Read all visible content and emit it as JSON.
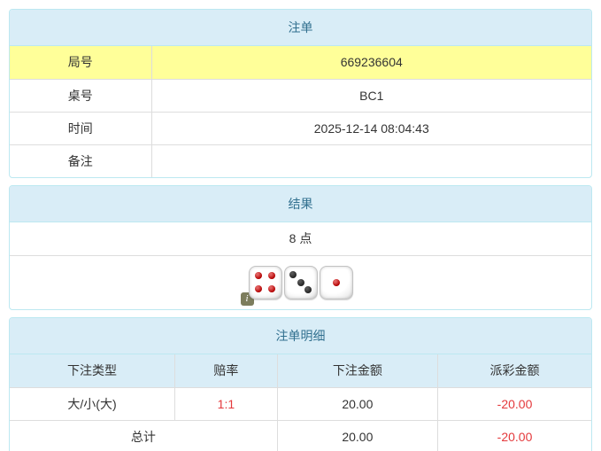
{
  "colors": {
    "panel_border": "#bce8f1",
    "heading_bg": "#d9edf7",
    "heading_text": "#31708f",
    "highlight_row_bg": "#ffff99",
    "table_inner_border": "#dddddd",
    "negative_text": "#e4393c",
    "body_text": "#333333"
  },
  "bet_panel": {
    "title": "注单",
    "rows": [
      {
        "label": "局号",
        "value": "669236604",
        "highlight": true
      },
      {
        "label": "桌号",
        "value": "BC1",
        "highlight": false
      },
      {
        "label": "时间",
        "value": "2025-12-14 08:04:43",
        "highlight": false
      },
      {
        "label": "备注",
        "value": "",
        "highlight": false
      }
    ]
  },
  "result_panel": {
    "title": "结果",
    "points": "8 点",
    "dice": [
      {
        "value": 4,
        "color": "red"
      },
      {
        "value": 3,
        "color": "black"
      },
      {
        "value": 1,
        "color": "red"
      }
    ],
    "info_icon": "i"
  },
  "detail_panel": {
    "title": "注单明细",
    "columns": [
      "下注类型",
      "赔率",
      "下注金额",
      "派彩金额"
    ],
    "rows": [
      {
        "bet_type": "大/小(大)",
        "odds": "1:1",
        "bet_amount": "20.00",
        "payout": "-20.00"
      }
    ],
    "total": {
      "label": "总计",
      "bet_amount": "20.00",
      "payout": "-20.00"
    }
  }
}
